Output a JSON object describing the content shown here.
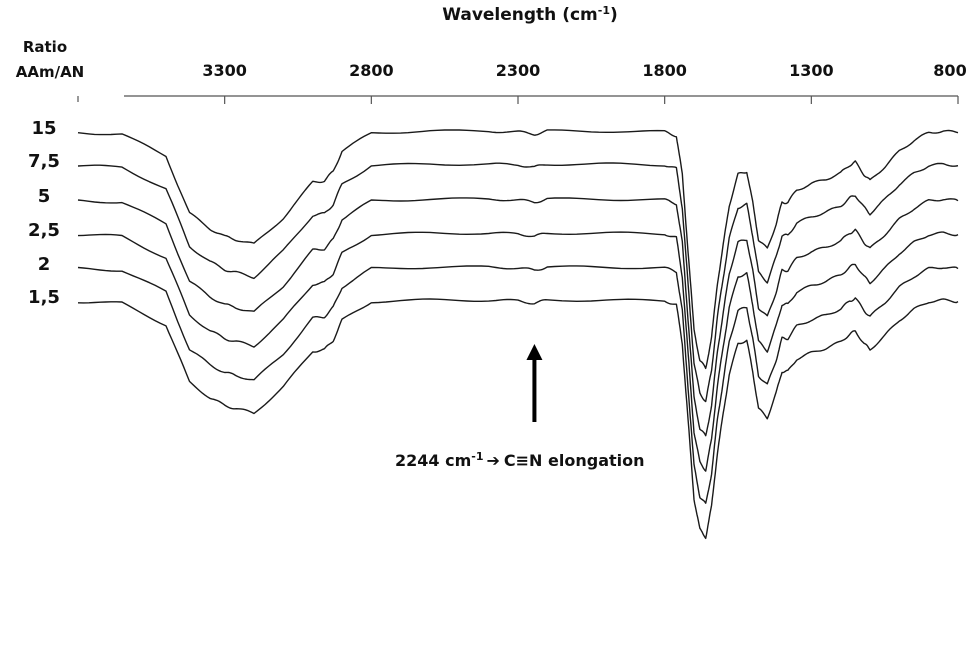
{
  "chart_data": {
    "type": "line",
    "title": "",
    "xlabel": "Wavelength (cm",
    "xlabel_sup": "-1",
    "xlabel_close": ")",
    "x_reversed": true,
    "xlim": [
      3800,
      800
    ],
    "xticks": [
      3300,
      2800,
      2300,
      1800,
      1300,
      800
    ],
    "legend_title": [
      "Ratio",
      "AAm/AN"
    ],
    "series_color": "#1a1a1a",
    "series": [
      {
        "name": "15",
        "x": [
          3800,
          3650,
          3500,
          3420,
          3350,
          3300,
          3260,
          3200,
          3100,
          3000,
          2960,
          2930,
          2900,
          2800,
          2600,
          2400,
          2300,
          2244,
          2200,
          2000,
          1800,
          1760,
          1740,
          1720,
          1700,
          1680,
          1660,
          1640,
          1620,
          1600,
          1580,
          1550,
          1520,
          1500,
          1480,
          1450,
          1420,
          1400,
          1380,
          1350,
          1300,
          1250,
          1200,
          1170,
          1150,
          1120,
          1100,
          1050,
          1000,
          950,
          900,
          850,
          800
        ],
        "y": [
          0.97,
          0.96,
          0.82,
          0.45,
          0.35,
          0.3,
          0.28,
          0.25,
          0.42,
          0.65,
          0.66,
          0.72,
          0.85,
          0.97,
          0.98,
          0.98,
          0.975,
          0.96,
          0.98,
          0.98,
          0.975,
          0.95,
          0.7,
          0.2,
          -0.3,
          -0.5,
          -0.55,
          -0.35,
          0.0,
          0.25,
          0.5,
          0.7,
          0.72,
          0.52,
          0.28,
          0.22,
          0.38,
          0.52,
          0.52,
          0.6,
          0.64,
          0.67,
          0.71,
          0.76,
          0.78,
          0.7,
          0.66,
          0.75,
          0.85,
          0.92,
          0.97,
          0.98,
          0.97
        ]
      },
      {
        "name": "7,5",
        "x": [
          3800,
          3650,
          3500,
          3420,
          3350,
          3300,
          3260,
          3200,
          3100,
          3000,
          2960,
          2930,
          2900,
          2800,
          2600,
          2400,
          2300,
          2244,
          2200,
          2000,
          1800,
          1760,
          1740,
          1720,
          1700,
          1680,
          1660,
          1640,
          1620,
          1600,
          1580,
          1550,
          1520,
          1500,
          1480,
          1450,
          1420,
          1400,
          1380,
          1350,
          1300,
          1250,
          1200,
          1170,
          1150,
          1120,
          1100,
          1050,
          1000,
          950,
          900,
          850,
          800
        ],
        "y": [
          0.97,
          0.96,
          0.82,
          0.45,
          0.35,
          0.3,
          0.28,
          0.25,
          0.42,
          0.65,
          0.66,
          0.72,
          0.85,
          0.97,
          0.98,
          0.98,
          0.975,
          0.96,
          0.98,
          0.98,
          0.975,
          0.95,
          0.7,
          0.2,
          -0.3,
          -0.5,
          -0.55,
          -0.35,
          0.0,
          0.25,
          0.5,
          0.7,
          0.72,
          0.52,
          0.28,
          0.22,
          0.38,
          0.52,
          0.52,
          0.6,
          0.64,
          0.67,
          0.71,
          0.76,
          0.78,
          0.7,
          0.66,
          0.75,
          0.85,
          0.92,
          0.97,
          0.98,
          0.97
        ]
      },
      {
        "name": "5",
        "x": [
          3800,
          3650,
          3500,
          3420,
          3350,
          3300,
          3260,
          3200,
          3100,
          3000,
          2960,
          2930,
          2900,
          2800,
          2600,
          2400,
          2300,
          2244,
          2200,
          2000,
          1800,
          1760,
          1740,
          1720,
          1700,
          1680,
          1660,
          1640,
          1620,
          1600,
          1580,
          1550,
          1520,
          1500,
          1480,
          1450,
          1420,
          1400,
          1380,
          1350,
          1300,
          1250,
          1200,
          1170,
          1150,
          1120,
          1100,
          1050,
          1000,
          950,
          900,
          850,
          800
        ],
        "y": [
          0.97,
          0.96,
          0.82,
          0.45,
          0.35,
          0.3,
          0.28,
          0.25,
          0.42,
          0.65,
          0.66,
          0.72,
          0.85,
          0.97,
          0.98,
          0.98,
          0.975,
          0.96,
          0.98,
          0.98,
          0.975,
          0.95,
          0.7,
          0.2,
          -0.3,
          -0.5,
          -0.55,
          -0.35,
          0.0,
          0.25,
          0.5,
          0.7,
          0.72,
          0.52,
          0.28,
          0.22,
          0.38,
          0.52,
          0.52,
          0.6,
          0.64,
          0.67,
          0.71,
          0.76,
          0.78,
          0.7,
          0.66,
          0.75,
          0.85,
          0.92,
          0.97,
          0.98,
          0.97
        ]
      },
      {
        "name": "2,5",
        "x": [
          3800,
          3650,
          3500,
          3420,
          3350,
          3300,
          3260,
          3200,
          3100,
          3000,
          2960,
          2930,
          2900,
          2800,
          2600,
          2400,
          2300,
          2244,
          2200,
          2000,
          1800,
          1760,
          1740,
          1720,
          1700,
          1680,
          1660,
          1640,
          1620,
          1600,
          1580,
          1550,
          1520,
          1500,
          1480,
          1450,
          1420,
          1400,
          1380,
          1350,
          1300,
          1250,
          1200,
          1170,
          1150,
          1120,
          1100,
          1050,
          1000,
          950,
          900,
          850,
          800
        ],
        "y": [
          0.97,
          0.96,
          0.82,
          0.45,
          0.35,
          0.3,
          0.28,
          0.25,
          0.42,
          0.65,
          0.66,
          0.72,
          0.85,
          0.97,
          0.98,
          0.98,
          0.975,
          0.96,
          0.98,
          0.98,
          0.975,
          0.95,
          0.7,
          0.2,
          -0.3,
          -0.5,
          -0.55,
          -0.35,
          0.0,
          0.25,
          0.5,
          0.7,
          0.72,
          0.52,
          0.28,
          0.22,
          0.38,
          0.52,
          0.52,
          0.6,
          0.64,
          0.67,
          0.71,
          0.76,
          0.78,
          0.7,
          0.66,
          0.75,
          0.85,
          0.92,
          0.97,
          0.98,
          0.97
        ]
      },
      {
        "name": "2",
        "x": [
          3800,
          3650,
          3500,
          3420,
          3350,
          3300,
          3260,
          3200,
          3100,
          3000,
          2960,
          2930,
          2900,
          2800,
          2600,
          2400,
          2300,
          2244,
          2200,
          2000,
          1800,
          1760,
          1740,
          1720,
          1700,
          1680,
          1660,
          1640,
          1620,
          1600,
          1580,
          1550,
          1520,
          1500,
          1480,
          1450,
          1420,
          1400,
          1380,
          1350,
          1300,
          1250,
          1200,
          1170,
          1150,
          1120,
          1100,
          1050,
          1000,
          950,
          900,
          850,
          800
        ],
        "y": [
          0.97,
          0.96,
          0.82,
          0.45,
          0.35,
          0.3,
          0.28,
          0.25,
          0.42,
          0.65,
          0.66,
          0.72,
          0.85,
          0.97,
          0.98,
          0.98,
          0.975,
          0.96,
          0.98,
          0.98,
          0.975,
          0.95,
          0.7,
          0.2,
          -0.3,
          -0.5,
          -0.55,
          -0.35,
          0.0,
          0.25,
          0.5,
          0.7,
          0.72,
          0.52,
          0.28,
          0.22,
          0.38,
          0.52,
          0.52,
          0.6,
          0.64,
          0.67,
          0.71,
          0.76,
          0.78,
          0.7,
          0.66,
          0.75,
          0.85,
          0.92,
          0.97,
          0.98,
          0.97
        ]
      },
      {
        "name": "1,5",
        "x": [
          3800,
          3650,
          3500,
          3420,
          3350,
          3300,
          3260,
          3200,
          3100,
          3000,
          2960,
          2930,
          2900,
          2800,
          2600,
          2400,
          2300,
          2244,
          2200,
          2000,
          1800,
          1760,
          1740,
          1720,
          1700,
          1680,
          1660,
          1640,
          1620,
          1600,
          1580,
          1550,
          1520,
          1500,
          1480,
          1450,
          1420,
          1400,
          1380,
          1350,
          1300,
          1250,
          1200,
          1170,
          1150,
          1120,
          1100,
          1050,
          1000,
          950,
          900,
          850,
          800
        ],
        "y": [
          0.97,
          0.96,
          0.82,
          0.45,
          0.35,
          0.3,
          0.28,
          0.25,
          0.42,
          0.65,
          0.66,
          0.72,
          0.85,
          0.97,
          0.98,
          0.98,
          0.975,
          0.96,
          0.98,
          0.98,
          0.975,
          0.95,
          0.7,
          0.2,
          -0.3,
          -0.5,
          -0.55,
          -0.35,
          0.0,
          0.25,
          0.5,
          0.7,
          0.72,
          0.52,
          0.28,
          0.22,
          0.38,
          0.52,
          0.52,
          0.6,
          0.64,
          0.67,
          0.71,
          0.76,
          0.78,
          0.7,
          0.66,
          0.75,
          0.85,
          0.92,
          0.97,
          0.98,
          0.97
        ]
      }
    ],
    "annotation": {
      "x": 2244,
      "text_value": "2244 cm",
      "text_sup": "-1",
      "text_rest": "C≡N elongation",
      "arrow_glyph": "➔"
    }
  }
}
